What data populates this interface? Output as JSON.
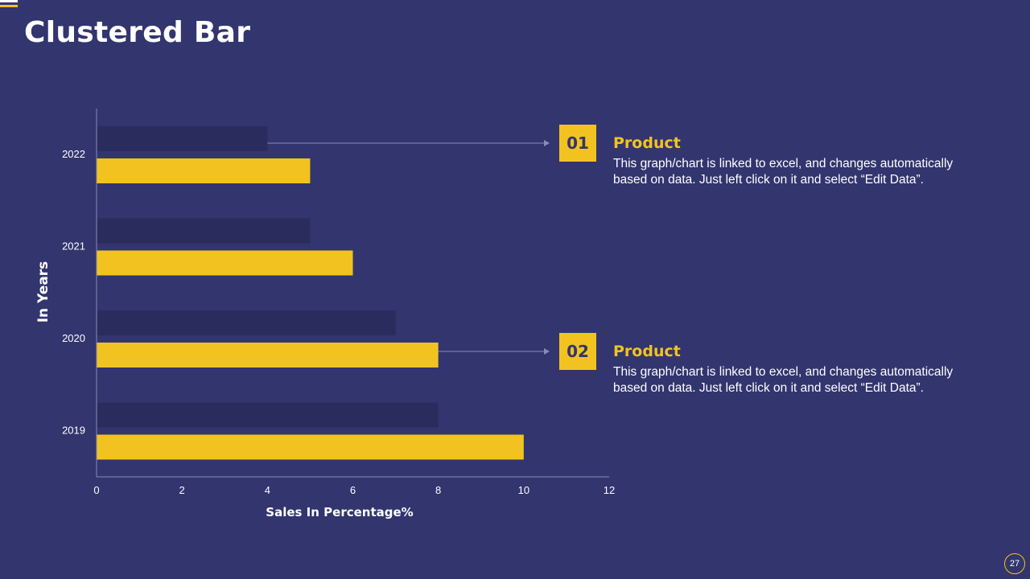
{
  "slide": {
    "title": "Clustered Bar",
    "page_number": "27"
  },
  "colors": {
    "background": "#32356e",
    "accent_yellow": "#f2c320",
    "series_dark": "#2a2c5e",
    "axis": "#8a8cb5",
    "text": "#ffffff"
  },
  "chart_data": {
    "type": "bar",
    "orientation": "horizontal",
    "title": "",
    "categories": [
      "2019",
      "2020",
      "2021",
      "2022"
    ],
    "series": [
      {
        "name": "Product 01",
        "values": [
          8,
          7,
          5,
          4
        ],
        "color": "#2a2c5e"
      },
      {
        "name": "Product 02",
        "values": [
          10,
          8,
          6,
          5
        ],
        "color": "#f2c320"
      }
    ],
    "xlabel": "Sales In Percentage%",
    "ylabel": "In Years",
    "xlim": [
      0,
      12
    ],
    "xticks": [
      0,
      2,
      4,
      6,
      8,
      10,
      12
    ],
    "grid": false
  },
  "callouts": [
    {
      "number": "01",
      "heading": "Product",
      "text": "This graph/chart  is linked to excel, and changes automatically based on data. Just left click on it and select “Edit Data”."
    },
    {
      "number": "02",
      "heading": "Product",
      "text": "This graph/chart  is linked to excel, and changes automatically based on data. Just left click on it and select “Edit Data”."
    }
  ]
}
